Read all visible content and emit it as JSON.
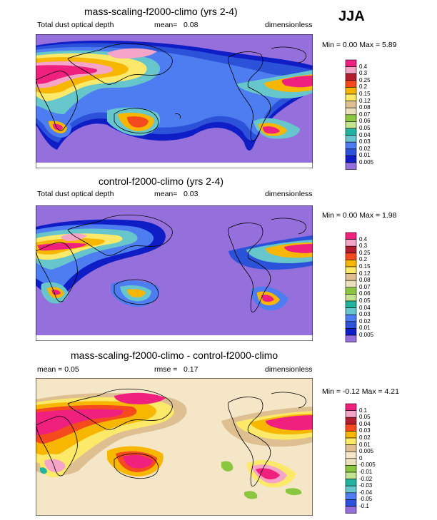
{
  "season": "JJA",
  "panels": [
    {
      "title": "mass-scaling-f2000-climo (yrs 2-4)",
      "left_label": "Total dust optical depth",
      "mean_label": "mean=",
      "mean_value": "0.08",
      "right_label": "dimensionless",
      "range_text": "Min =   0.00 Max =   5.89",
      "colorbar": {
        "labels": [
          "0.4",
          "0.3",
          "0.25",
          "0.2",
          "0.15",
          "0.12",
          "0.08",
          "0.07",
          "0.06",
          "0.05",
          "0.04",
          "0.03",
          "0.02",
          "0.01",
          "0.005"
        ],
        "colors": [
          "#f0207f",
          "#f4a5c8",
          "#b21e2e",
          "#f44a1e",
          "#f7b600",
          "#fce96a",
          "#ddbf92",
          "#ebe0bd",
          "#8ac640",
          "#c4e38f",
          "#22b39e",
          "#67c5cc",
          "#4d7df1",
          "#2c52d9",
          "#0f1dc6",
          "#9570dc"
        ]
      },
      "chart_data": {
        "type": "heatmap",
        "title": "mass-scaling-f2000-climo (yrs 2-4)",
        "variable": "Total dust optical depth",
        "units": "dimensionless",
        "mean": 0.08,
        "min": 0.0,
        "max": 5.89,
        "levels": [
          0.005,
          0.01,
          0.02,
          0.03,
          0.04,
          0.05,
          0.06,
          0.07,
          0.08,
          0.12,
          0.15,
          0.2,
          0.25,
          0.3,
          0.4
        ]
      }
    },
    {
      "title": "control-f2000-climo (yrs 2-4)",
      "left_label": "Total dust optical depth",
      "mean_label": "mean=",
      "mean_value": "0.03",
      "right_label": "dimensionless",
      "range_text": "Min =   0.00 Max =   1.98",
      "colorbar": {
        "labels": [
          "0.4",
          "0.3",
          "0.25",
          "0.2",
          "0.15",
          "0.12",
          "0.08",
          "0.07",
          "0.06",
          "0.05",
          "0.04",
          "0.03",
          "0.02",
          "0.01",
          "0.005"
        ],
        "colors": [
          "#f0207f",
          "#f4a5c8",
          "#b21e2e",
          "#f44a1e",
          "#f7b600",
          "#fce96a",
          "#ddbf92",
          "#ebe0bd",
          "#8ac640",
          "#c4e38f",
          "#22b39e",
          "#67c5cc",
          "#4d7df1",
          "#2c52d9",
          "#0f1dc6",
          "#9570dc"
        ]
      },
      "chart_data": {
        "type": "heatmap",
        "title": "control-f2000-climo (yrs 2-4)",
        "variable": "Total dust optical depth",
        "units": "dimensionless",
        "mean": 0.03,
        "min": 0.0,
        "max": 1.98,
        "levels": [
          0.005,
          0.01,
          0.02,
          0.03,
          0.04,
          0.05,
          0.06,
          0.07,
          0.08,
          0.12,
          0.15,
          0.2,
          0.25,
          0.3,
          0.4
        ]
      }
    },
    {
      "title": "mass-scaling-f2000-climo - control-f2000-climo",
      "left_label": "mean =   0.05",
      "mean_label": "rmse =",
      "mean_value": "0.17",
      "right_label": "dimensionless",
      "range_text": "Min =  -0.12 Max =   4.21",
      "colorbar": {
        "labels": [
          "0.1",
          "0.05",
          "0.04",
          "0.03",
          "0.02",
          "0.01",
          "0.005",
          "0",
          "-0.005",
          "-0.01",
          "-0.02",
          "-0.03",
          "-0.04",
          "-0.05",
          "-0.1"
        ],
        "colors": [
          "#f0207f",
          "#f4a5c8",
          "#b21e2e",
          "#f44a1e",
          "#f7b600",
          "#fce96a",
          "#ddbf92",
          "#f5e6c8",
          "#ebe0bd",
          "#8ac640",
          "#c4e38f",
          "#22b39e",
          "#67c5cc",
          "#4d7df1",
          "#2c52d9",
          "#9570dc"
        ]
      },
      "chart_data": {
        "type": "heatmap",
        "title": "mass-scaling-f2000-climo - control-f2000-climo",
        "units": "dimensionless",
        "mean": 0.05,
        "rmse": 0.17,
        "min": -0.12,
        "max": 4.21,
        "levels": [
          -0.1,
          -0.05,
          -0.04,
          -0.03,
          -0.02,
          -0.01,
          -0.005,
          0,
          0.005,
          0.01,
          0.02,
          0.03,
          0.04,
          0.05,
          0.1
        ]
      }
    }
  ]
}
